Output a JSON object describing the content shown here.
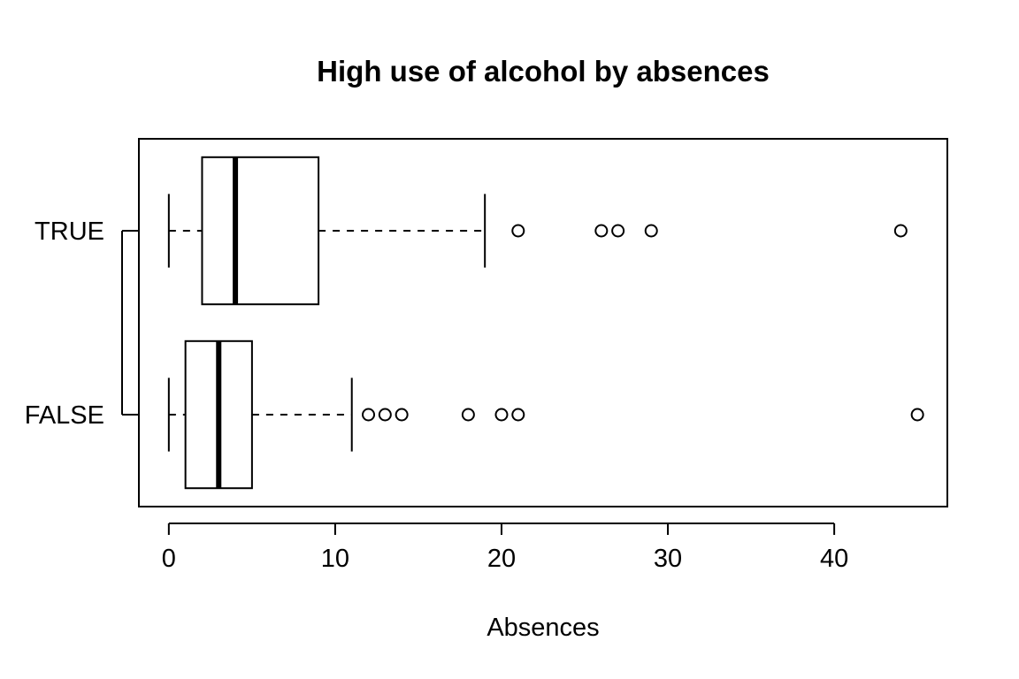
{
  "chart_data": {
    "type": "boxplot",
    "orientation": "horizontal",
    "title": "High use of alcohol by absences",
    "xlabel": "Absences",
    "ylabel": "",
    "xlim": [
      -1.8,
      46.8
    ],
    "x_ticks": [
      0,
      10,
      20,
      30,
      40
    ],
    "grid": false,
    "categories": [
      "FALSE",
      "TRUE"
    ],
    "boxes": [
      {
        "label": "FALSE",
        "whisker_low": 0,
        "q1": 1,
        "median": 3,
        "q3": 5,
        "whisker_high": 11,
        "outliers": [
          12,
          13,
          14,
          18,
          20,
          21,
          45
        ]
      },
      {
        "label": "TRUE",
        "whisker_low": 0,
        "q1": 2,
        "median": 4,
        "q3": 9,
        "whisker_high": 19,
        "outliers": [
          21,
          26,
          27,
          29,
          44
        ]
      }
    ]
  }
}
